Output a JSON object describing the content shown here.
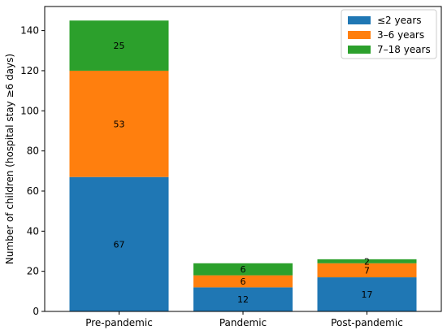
{
  "chart_data": {
    "type": "bar",
    "stacked": true,
    "categories": [
      "Pre-pandemic",
      "Pandemic",
      "Post-pandemic"
    ],
    "series": [
      {
        "name": "≤2 years",
        "color": "#1f77b4",
        "values": [
          67,
          12,
          17
        ]
      },
      {
        "name": "3–6 years",
        "color": "#ff7f0e",
        "values": [
          53,
          6,
          7
        ]
      },
      {
        "name": "7–18 years",
        "color": "#2ca02c",
        "values": [
          25,
          6,
          2
        ]
      }
    ],
    "title": "",
    "xlabel": "",
    "ylabel": "Number of children (hospital stay ≥6 days)",
    "ylim": [
      0,
      152
    ],
    "yticks": [
      0,
      20,
      40,
      60,
      80,
      100,
      120,
      140
    ],
    "legend_position": "top-right",
    "grid": false,
    "data_labels": true
  }
}
